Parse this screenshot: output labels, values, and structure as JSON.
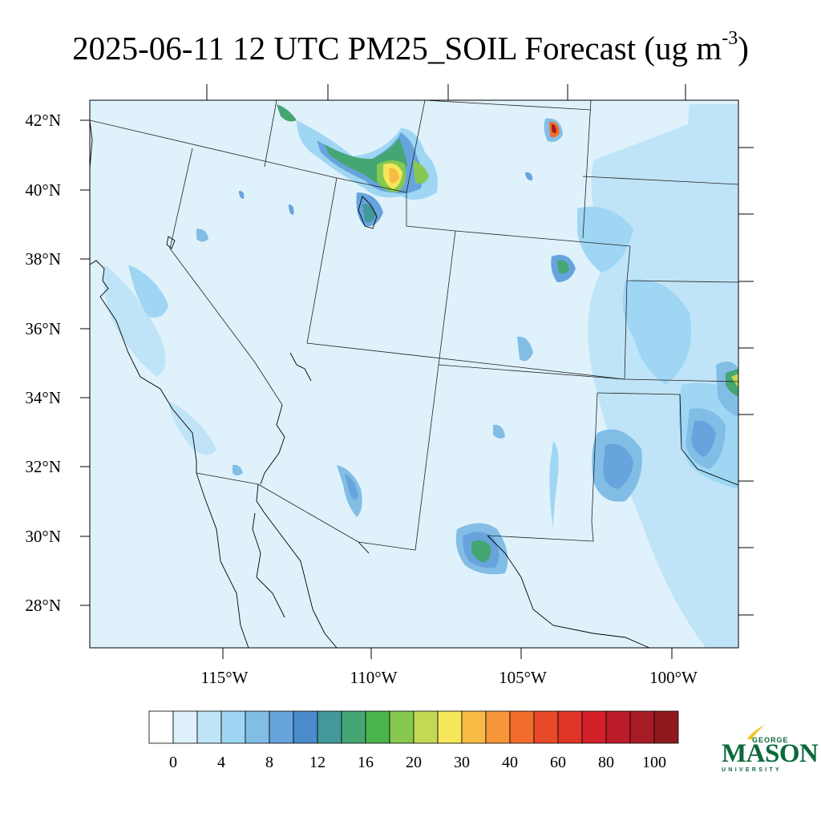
{
  "title": {
    "main": "2025-06-11 12 UTC PM25_SOIL Forecast (ug m",
    "superscript": "-3",
    "close": ")"
  },
  "map": {
    "lat_labels": [
      "42°N",
      "40°N",
      "38°N",
      "36°N",
      "34°N",
      "32°N",
      "30°N",
      "28°N"
    ],
    "lon_labels": [
      "115°W",
      "110°W",
      "105°W",
      "100°W"
    ],
    "background_color": "#dff1fb"
  },
  "colorbar": {
    "colors": [
      "#ffffff",
      "#dff1fb",
      "#bfe4f7",
      "#9ed6f4",
      "#82bde6",
      "#67a4dd",
      "#4a8bcc",
      "#43999a",
      "#45a673",
      "#49b44b",
      "#86c850",
      "#c3d955",
      "#f6e65a",
      "#f8bb45",
      "#f6953a",
      "#f16c2b",
      "#e84a29",
      "#df3428",
      "#d31f2a",
      "#bc1c27",
      "#a71b24",
      "#8e1a1f"
    ],
    "labels": [
      "0",
      "4",
      "8",
      "12",
      "16",
      "20",
      "30",
      "40",
      "60",
      "80",
      "100"
    ]
  },
  "logo": {
    "top": "GEORGE",
    "main": "MASON",
    "bottom": "UNIVERSITY",
    "color": "#0b6a3b",
    "accent": "#f0c419"
  }
}
